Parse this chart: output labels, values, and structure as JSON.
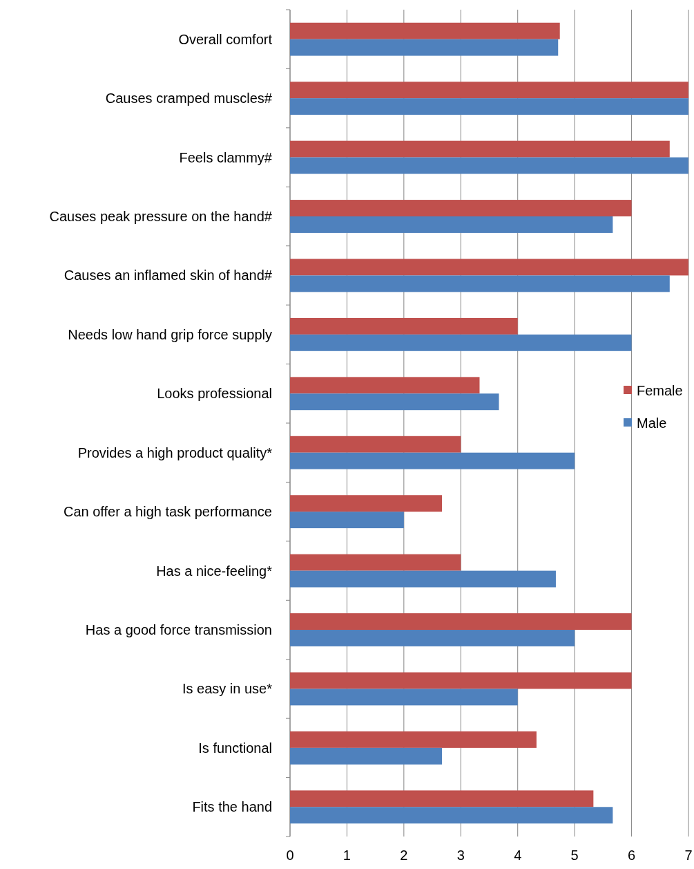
{
  "chart_data": {
    "type": "bar",
    "orientation": "horizontal",
    "categories": [
      "Overall comfort",
      "Causes cramped muscles#",
      "Feels clammy#",
      "Causes peak pressure on the hand#",
      "Causes an inflamed skin of hand#",
      "Needs low hand grip force supply",
      "Looks professional",
      "Provides a high product quality*",
      "Can offer a high task performance",
      "Has a nice-feeling*",
      "Has a good force transmission",
      "Is easy in use*",
      "Is functional",
      "Fits the hand"
    ],
    "series": [
      {
        "name": "Female",
        "color": "#c0504d",
        "values": [
          4.74,
          7,
          6.67,
          6,
          7,
          4,
          3.33,
          3,
          2.67,
          3,
          6,
          6,
          4.33,
          5.33
        ]
      },
      {
        "name": "Male",
        "color": "#4f81bd",
        "values": [
          4.71,
          7,
          7,
          5.67,
          6.67,
          6,
          3.67,
          5,
          2,
          4.67,
          5,
          4,
          2.67,
          5.67
        ]
      }
    ],
    "xlim": [
      0,
      7
    ],
    "xticks": [
      0,
      1,
      2,
      3,
      4,
      5,
      6,
      7
    ],
    "grid": "x",
    "legend": "right"
  }
}
